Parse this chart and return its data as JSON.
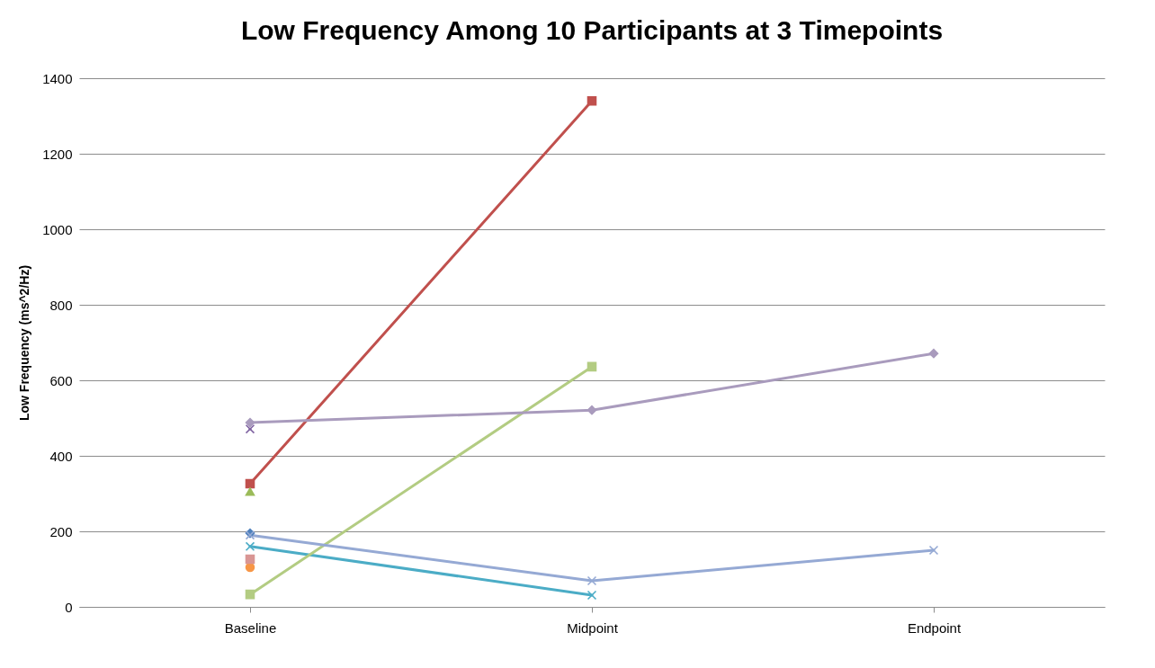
{
  "chart_data": {
    "type": "line",
    "title": "Low Frequency Among 10 Participants at 3 Timepoints",
    "ylabel": "Low Frequency (ms^2/Hz)",
    "categories": [
      "Baseline",
      "Midpoint",
      "Endpoint"
    ],
    "ylim": [
      0,
      1400
    ],
    "yticks": [
      0,
      200,
      400,
      600,
      800,
      1000,
      1200,
      1400
    ],
    "grid": "y",
    "series": [
      {
        "color": "#4f81bd",
        "marker": "diamond",
        "values": [
          195,
          null,
          null
        ]
      },
      {
        "color": "#c0504d",
        "marker": "square",
        "values": [
          326,
          1340,
          null
        ]
      },
      {
        "color": "#9bbb59",
        "marker": "triangle",
        "values": [
          305,
          null,
          null
        ]
      },
      {
        "color": "#8064a2",
        "marker": "cross",
        "values": [
          471,
          null,
          null
        ]
      },
      {
        "color": "#4bacc6",
        "marker": "cross",
        "values": [
          160,
          31,
          null
        ]
      },
      {
        "color": "#f79646",
        "marker": "circle",
        "values": [
          105,
          null,
          null
        ]
      },
      {
        "color": "#d99694",
        "marker": "square",
        "values": [
          126,
          null,
          null
        ]
      },
      {
        "color": "#b3cc82",
        "marker": "square",
        "values": [
          33,
          636,
          null
        ]
      },
      {
        "color": "#95a9d4",
        "marker": "cross",
        "values": [
          190,
          69,
          150
        ]
      },
      {
        "color": "#a99bbd",
        "marker": "diamond",
        "values": [
          488,
          521,
          671
        ]
      }
    ]
  }
}
